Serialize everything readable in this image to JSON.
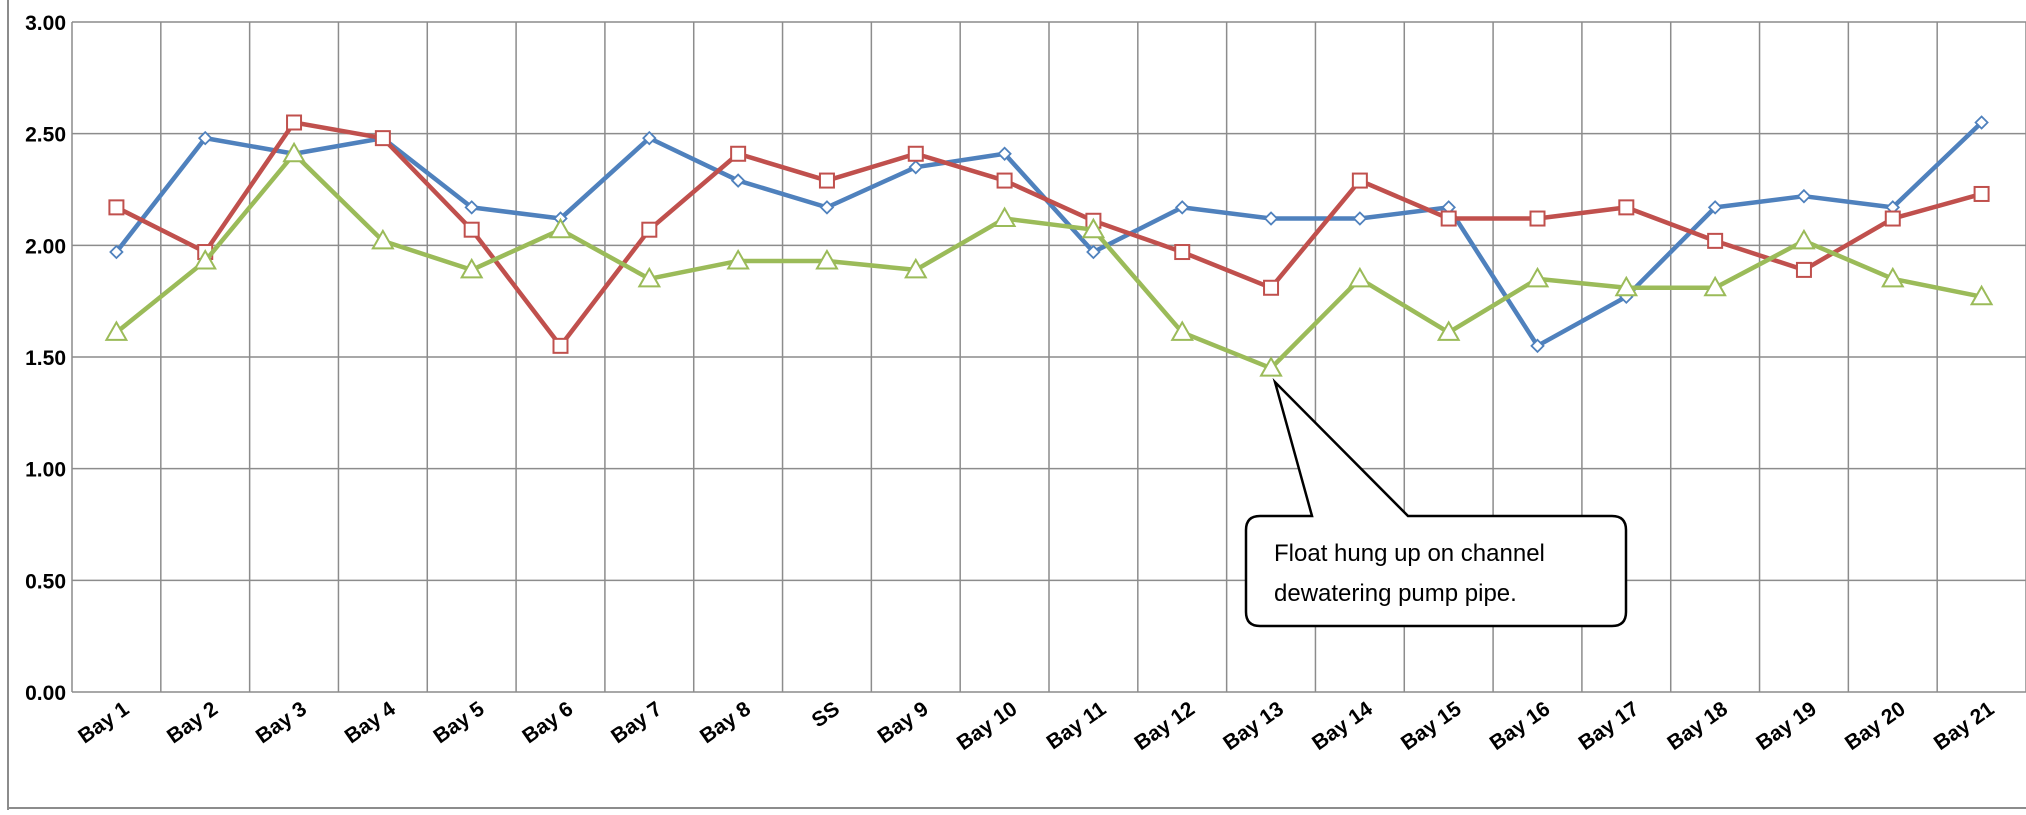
{
  "chart_data": {
    "type": "line",
    "title": "",
    "xlabel": "",
    "ylabel": "",
    "ylim": [
      0,
      3
    ],
    "yticks": [
      "0.00",
      "0.50",
      "1.00",
      "1.50",
      "2.00",
      "2.50",
      "3.00"
    ],
    "grid": true,
    "categories": [
      "Bay 1",
      "Bay 2",
      "Bay 3",
      "Bay 4",
      "Bay 5",
      "Bay 6",
      "Bay 7",
      "Bay 8",
      "SS",
      "Bay 9",
      "Bay 10",
      "Bay 11",
      "Bay 12",
      "Bay 13",
      "Bay 14",
      "Bay 15",
      "Bay 16",
      "Bay 17",
      "Bay 18",
      "Bay 19",
      "Bay 20",
      "Bay 21"
    ],
    "series": [
      {
        "color": "#4f81bd",
        "marker": "diamond",
        "values": [
          1.97,
          2.48,
          2.41,
          2.48,
          2.17,
          2.12,
          2.48,
          2.29,
          2.17,
          2.35,
          2.41,
          1.97,
          2.17,
          2.12,
          2.12,
          2.17,
          1.55,
          1.77,
          2.17,
          2.22,
          2.17,
          2.55
        ]
      },
      {
        "color": "#c0504d",
        "marker": "square",
        "values": [
          2.17,
          1.97,
          2.55,
          2.48,
          2.07,
          1.55,
          2.07,
          2.41,
          2.29,
          2.41,
          2.29,
          2.11,
          1.97,
          1.81,
          2.29,
          2.12,
          2.12,
          2.17,
          2.02,
          1.89,
          2.12,
          2.23
        ]
      },
      {
        "color": "#9bbb59",
        "marker": "triangle",
        "values": [
          1.61,
          1.93,
          2.41,
          2.02,
          1.89,
          2.07,
          1.85,
          1.93,
          1.93,
          1.89,
          2.12,
          2.07,
          1.61,
          1.45,
          1.85,
          1.61,
          1.85,
          1.81,
          1.81,
          2.02,
          1.85,
          1.77
        ]
      }
    ],
    "annotations": [
      {
        "lines": [
          "Float hung up on channel",
          "dewatering  pump pipe."
        ],
        "points_to": "Bay 13"
      }
    ]
  }
}
